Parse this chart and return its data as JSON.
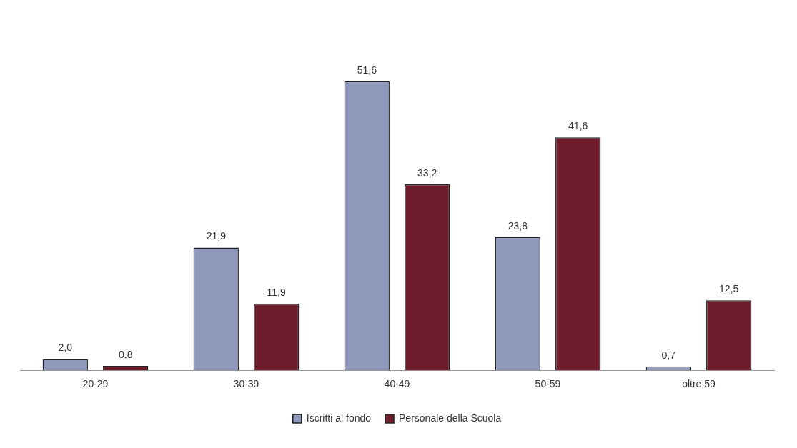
{
  "chart_data": {
    "type": "bar",
    "categories": [
      "20-29",
      "30-39",
      "40-49",
      "50-59",
      "oltre 59"
    ],
    "series": [
      {
        "name": "Iscritti al fondo",
        "color": "#8f97bb",
        "values": [
          2.0,
          21.9,
          51.6,
          23.8,
          0.7
        ],
        "value_labels": [
          "2,0",
          "21,9",
          "51,6",
          "23,8",
          "0,7"
        ]
      },
      {
        "name": "Personale della Scuola",
        "color": "#6e1c2c",
        "values": [
          0.8,
          11.9,
          33.2,
          41.6,
          12.5
        ],
        "value_labels": [
          "0,8",
          "11,9",
          "33,2",
          "41,6",
          "12,5"
        ]
      }
    ],
    "legend": "bottom",
    "grid": false
  }
}
